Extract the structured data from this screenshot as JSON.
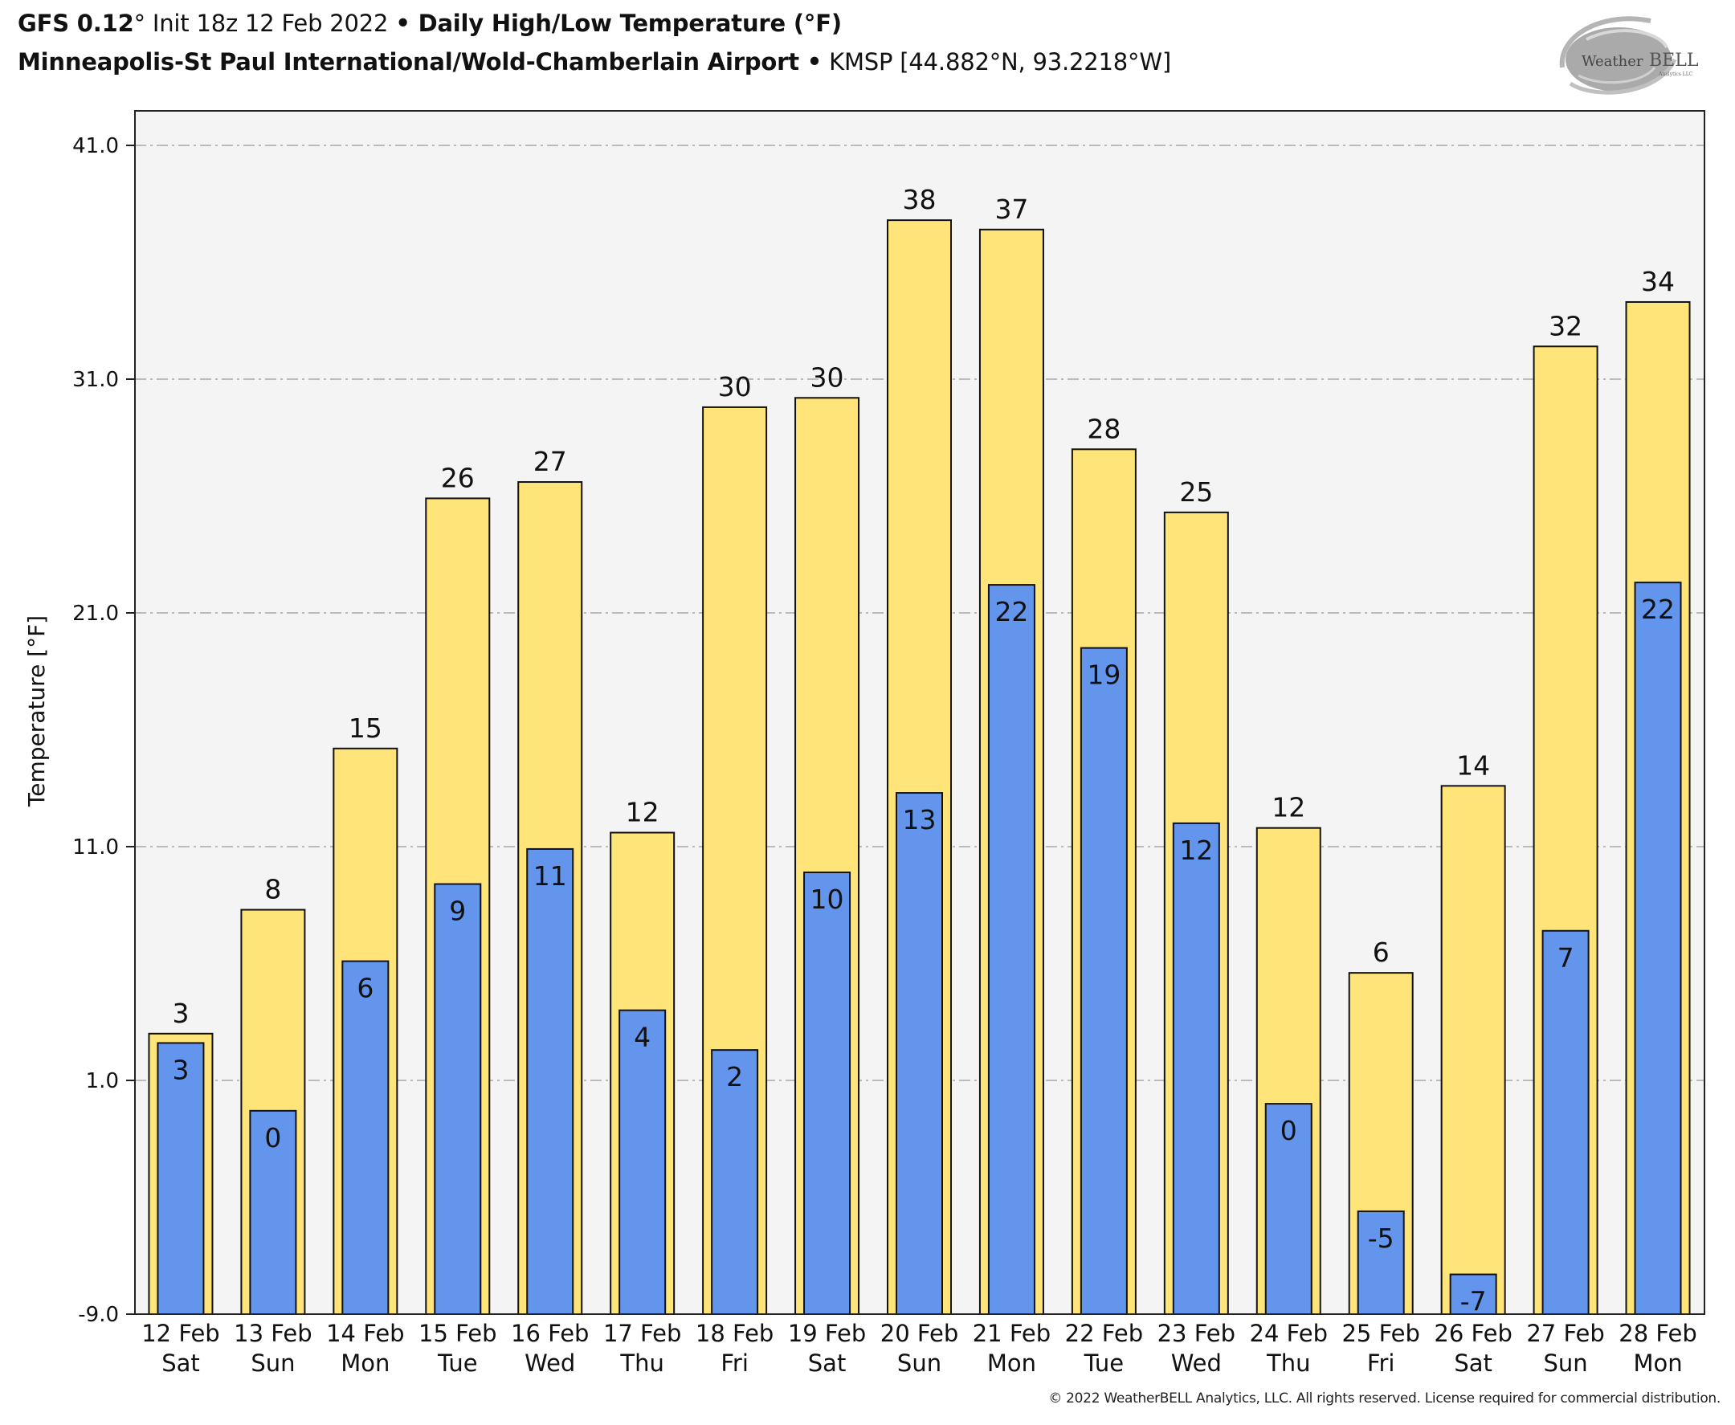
{
  "header": {
    "model": "GFS 0.12",
    "degree_mark": "°",
    "init": " Init 18z 12 Feb 2022 ",
    "bullet": "•",
    "product": " Daily High/Low Temperature (°F)",
    "station_name": "Minneapolis-St Paul International/Wold-Chamberlain Airport ",
    "station_info": " KMSP [44.882°N, 93.2218°W]"
  },
  "logo": {
    "name": "WeatherBELL",
    "sub": "Analytics LLC",
    "text_left": "Weather",
    "text_right": "BELL"
  },
  "footer": {
    "copyright": "© 2022 WeatherBELL Analytics, LLC. All rights reserved. License required for commercial distribution."
  },
  "colors": {
    "high": "#FFE47A",
    "low": "#6495ED",
    "plot_bg": "#F4F4F4",
    "grid": "#BBBBBB",
    "edge": "#111111"
  },
  "chart_data": {
    "type": "bar",
    "title": "Daily High/Low Temperature (°F)",
    "xlabel": "",
    "ylabel": "Temperature [°F]",
    "ylim": [
      -9.0,
      41.0
    ],
    "yticks": [
      -9.0,
      1.0,
      11.0,
      21.0,
      31.0,
      41.0
    ],
    "ytick_labels": [
      "-9.0",
      "1.0",
      "11.0",
      "21.0",
      "31.0",
      "41.0"
    ],
    "grid": true,
    "categories": [
      [
        "12 Feb",
        "Sat"
      ],
      [
        "13 Feb",
        "Sun"
      ],
      [
        "14 Feb",
        "Mon"
      ],
      [
        "15 Feb",
        "Tue"
      ],
      [
        "16 Feb",
        "Wed"
      ],
      [
        "17 Feb",
        "Thu"
      ],
      [
        "18 Feb",
        "Fri"
      ],
      [
        "19 Feb",
        "Sat"
      ],
      [
        "20 Feb",
        "Sun"
      ],
      [
        "21 Feb",
        "Mon"
      ],
      [
        "22 Feb",
        "Tue"
      ],
      [
        "23 Feb",
        "Wed"
      ],
      [
        "24 Feb",
        "Thu"
      ],
      [
        "25 Feb",
        "Fri"
      ],
      [
        "26 Feb",
        "Sat"
      ],
      [
        "27 Feb",
        "Sun"
      ],
      [
        "28 Feb",
        "Mon"
      ]
    ],
    "series": [
      {
        "name": "High",
        "values": [
          3.0,
          8.3,
          15.2,
          25.9,
          26.6,
          11.6,
          29.8,
          30.2,
          37.8,
          37.4,
          28.0,
          25.3,
          11.8,
          5.6,
          13.6,
          32.4,
          34.3
        ],
        "labels": [
          "3",
          "8",
          "15",
          "26",
          "27",
          "12",
          "30",
          "30",
          "38",
          "37",
          "28",
          "25",
          "12",
          "6",
          "14",
          "32",
          "34"
        ]
      },
      {
        "name": "Low",
        "values": [
          2.6,
          -0.3,
          6.1,
          9.4,
          10.9,
          4.0,
          2.3,
          9.9,
          13.3,
          22.2,
          19.5,
          12.0,
          0.0,
          -4.6,
          -7.3,
          7.4,
          22.3
        ],
        "labels": [
          "3",
          "0",
          "6",
          "9",
          "11",
          "4",
          "2",
          "10",
          "13",
          "22",
          "19",
          "12",
          "0",
          "-5",
          "-7",
          "7",
          "22"
        ]
      }
    ]
  }
}
